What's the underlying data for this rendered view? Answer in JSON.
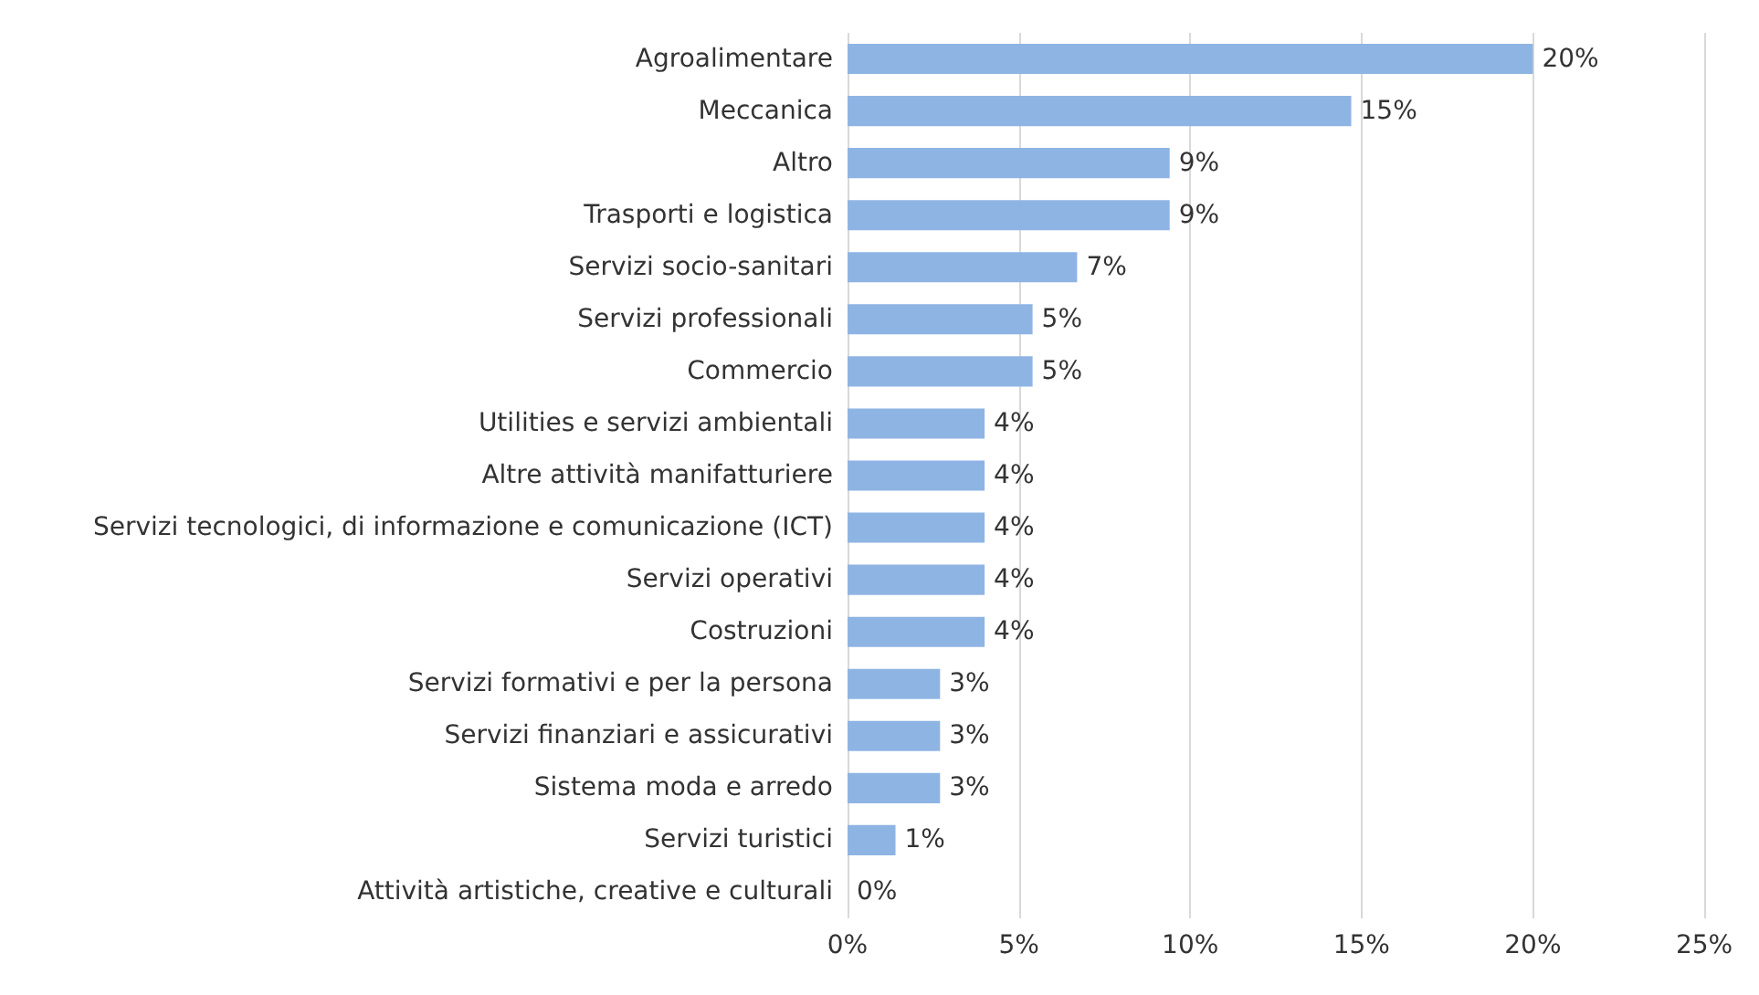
{
  "chart_data": {
    "type": "bar",
    "orientation": "horizontal",
    "categories": [
      "Agroalimentare",
      "Meccanica",
      "Altro",
      "Trasporti e logistica",
      "Servizi socio-sanitari",
      "Servizi professionali",
      "Commercio",
      "Utilities e servizi ambientali",
      "Altre attività manifatturiere",
      "Servizi tecnologici, di informazione e comunicazione (ICT)",
      "Servizi operativi",
      "Costruzioni",
      "Servizi formativi e per la persona",
      "Servizi finanziari e assicurativi",
      "Sistema moda e arredo",
      "Servizi turistici",
      "Attività artistiche, creative e culturali"
    ],
    "values": [
      20.0,
      14.7,
      9.4,
      9.4,
      6.7,
      5.4,
      5.4,
      4.0,
      4.0,
      4.0,
      4.0,
      4.0,
      2.7,
      2.7,
      2.7,
      1.4,
      0
    ],
    "value_labels": [
      "20%",
      "15%",
      "9%",
      "9%",
      "7%",
      "5%",
      "5%",
      "4%",
      "4%",
      "4%",
      "4%",
      "4%",
      "3%",
      "3%",
      "3%",
      "1%",
      "0%"
    ],
    "color": "#8eb4e3",
    "xlim": [
      0,
      25
    ],
    "xticks": [
      {
        "value": 0,
        "label": "0%"
      },
      {
        "value": 5,
        "label": "5%"
      },
      {
        "value": 10,
        "label": "10%"
      },
      {
        "value": 15,
        "label": "15%"
      },
      {
        "value": 20,
        "label": "20%"
      },
      {
        "value": 25,
        "label": "25%"
      }
    ],
    "grid": "x"
  }
}
